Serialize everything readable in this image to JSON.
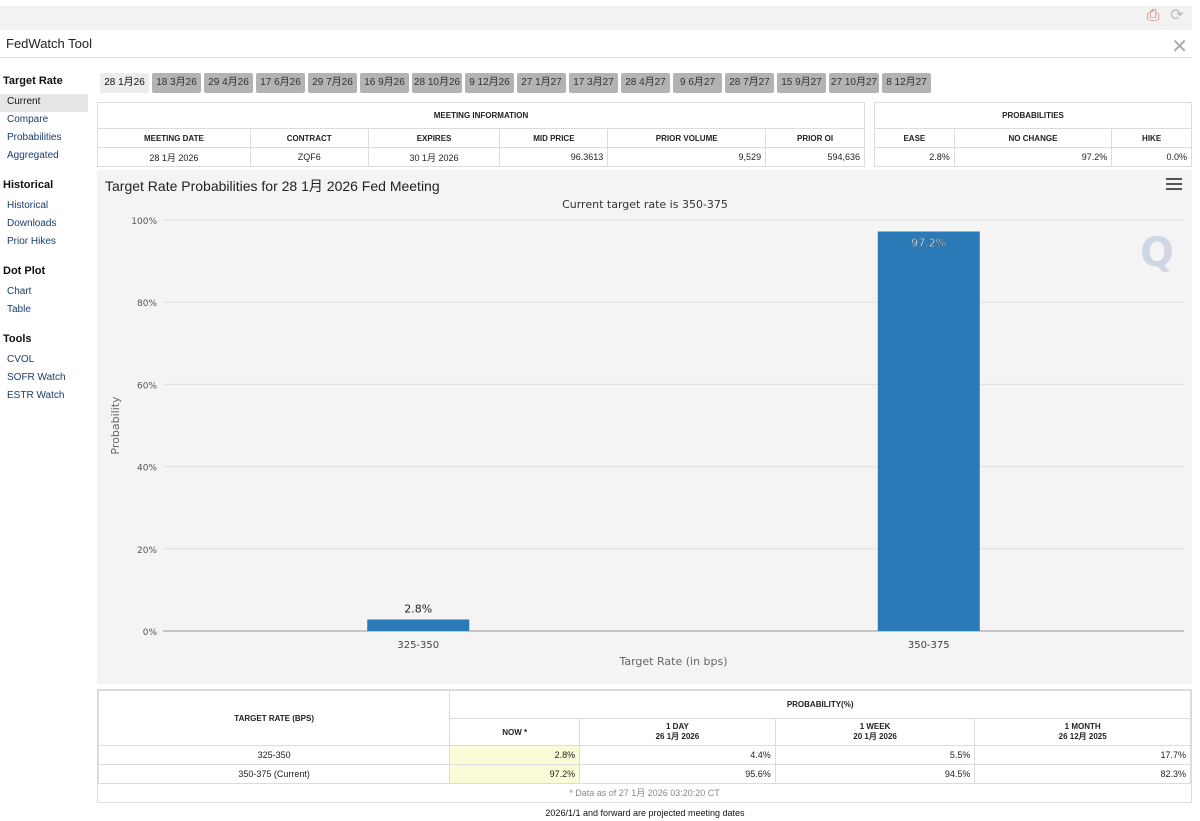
{
  "window": {
    "title": "FedWatch Tool"
  },
  "sidebar": {
    "sections": [
      {
        "title": "Target Rate",
        "items": [
          "Current",
          "Compare",
          "Probabilities",
          "Aggregated"
        ]
      },
      {
        "title": "Historical",
        "items": [
          "Historical",
          "Downloads",
          "Prior Hikes"
        ]
      },
      {
        "title": "Dot Plot",
        "items": [
          "Chart",
          "Table"
        ]
      },
      {
        "title": "Tools",
        "items": [
          "CVOL",
          "SOFR Watch",
          "ESTR Watch"
        ]
      }
    ]
  },
  "tabs": [
    "28 1月26",
    "18 3月26",
    "29 4月26",
    "17 6月26",
    "29 7月26",
    "16 9月26",
    "28 10月26",
    "9 12月26",
    "27 1月27",
    "17 3月27",
    "28 4月27",
    "9 6月27",
    "28 7月27",
    "15 9月27",
    "27 10月27",
    "8 12月27"
  ],
  "meeting_info": {
    "header": "MEETING INFORMATION",
    "columns": [
      "MEETING DATE",
      "CONTRACT",
      "EXPIRES",
      "MID PRICE",
      "PRIOR VOLUME",
      "PRIOR OI"
    ],
    "row": [
      "28 1月 2026",
      "ZQF6",
      "30 1月 2026",
      "96.3613",
      "9,529",
      "594,636"
    ]
  },
  "probabilities": {
    "header": "PROBABILITIES",
    "columns": [
      "EASE",
      "NO CHANGE",
      "HIKE"
    ],
    "row": [
      "2.8%",
      "97.2%",
      "0.0%"
    ]
  },
  "chart": {
    "title": "Target Rate Probabilities for 28 1月 2026 Fed Meeting",
    "watermark": "Q"
  },
  "chart_data": {
    "type": "bar",
    "title": "Target Rate Probabilities for 28 1月 2026 Fed Meeting",
    "subtitle": "Current target rate is 350-375",
    "categories": [
      "325-350",
      "350-375"
    ],
    "values": [
      2.8,
      97.2
    ],
    "data_labels": [
      "2.8%",
      "97.2%"
    ],
    "xlabel": "Target Rate (in bps)",
    "ylabel": "Probability",
    "yticks": [
      "0%",
      "20%",
      "40%",
      "60%",
      "80%",
      "100%"
    ],
    "ylim": [
      0,
      100
    ],
    "bar_color": "#2a7ab8"
  },
  "bottom_table": {
    "rate_header": "TARGET RATE (BPS)",
    "prob_header": "PROBABILITY(%)",
    "cols": [
      {
        "line1": "NOW *",
        "line2": ""
      },
      {
        "line1": "1 DAY",
        "line2": "26 1月 2026"
      },
      {
        "line1": "1 WEEK",
        "line2": "20 1月 2026"
      },
      {
        "line1": "1 MONTH",
        "line2": "26 12月 2025"
      }
    ],
    "rows": [
      [
        "325-350",
        "2.8%",
        "4.4%",
        "5.5%",
        "17.7%"
      ],
      [
        "350-375 (Current)",
        "97.2%",
        "95.6%",
        "94.5%",
        "82.3%"
      ]
    ],
    "footnote": "* Data as of 27 1月 2026 03:20:20 CT"
  },
  "projected_note": "2026/1/1 and forward are projected meeting dates",
  "colors": {
    "accent": "#2a7ab8",
    "highlight": "#fbfbd8"
  }
}
